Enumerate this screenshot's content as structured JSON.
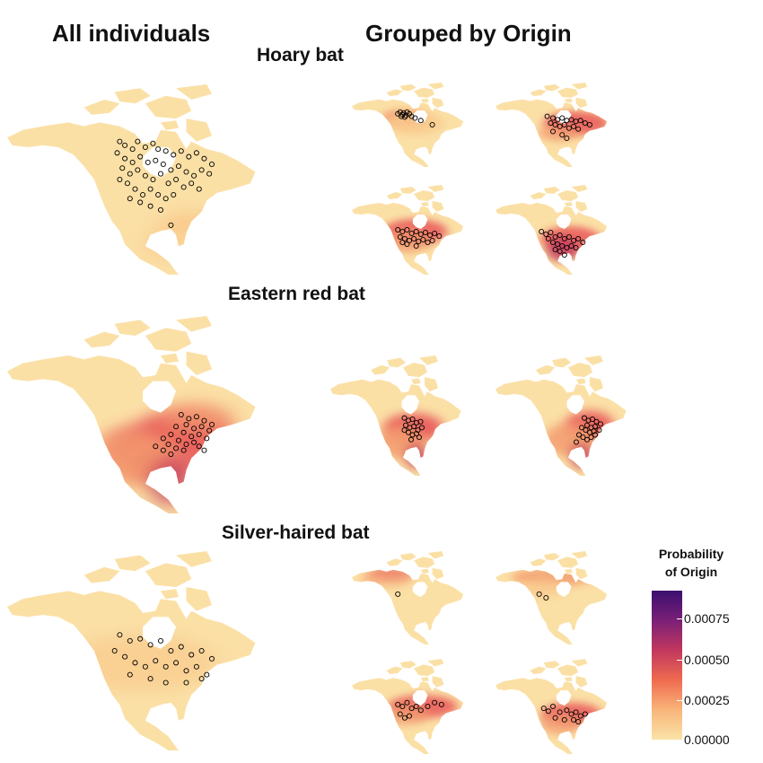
{
  "headers": {
    "all_individuals": "All individuals",
    "grouped_by_origin": "Grouped by Origin"
  },
  "species": {
    "hoary": "Hoary bat",
    "eastern_red": "Eastern red bat",
    "silver_haired": "Silver-haired bat"
  },
  "legend": {
    "title_line1": "Probability",
    "title_line2": "of Origin",
    "ticks": [
      "0.00075",
      "0.00050",
      "0.00025",
      "0.00000"
    ],
    "colors": [
      "#fbe3a8",
      "#f9b57a",
      "#ef6b4f",
      "#c2375f",
      "#7a2077",
      "#3b0f6f"
    ]
  },
  "colors": {
    "land_base": "#fbe0a6",
    "low": "#f9c98c",
    "mid": "#f39a6e",
    "high": "#e8585a",
    "very_high": "#c43a5e",
    "points": "#000000"
  }
}
